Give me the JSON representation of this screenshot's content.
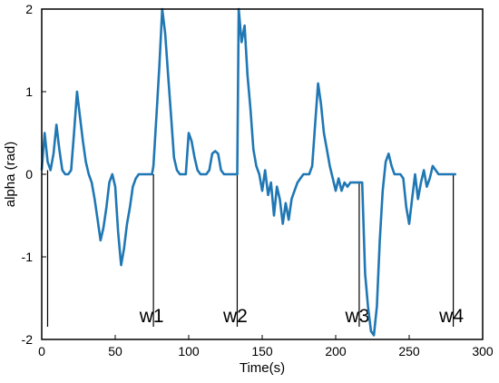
{
  "chart_data": {
    "type": "line",
    "xlabel": "Time(s)",
    "ylabel": "alpha (rad)",
    "xlim": [
      0,
      300
    ],
    "ylim": [
      -2,
      2
    ],
    "xticks": [
      0,
      50,
      100,
      150,
      200,
      250,
      300
    ],
    "yticks": [
      -2,
      -1,
      0,
      1,
      2
    ],
    "grid": false,
    "line_color": "#1f77b4",
    "series": [
      {
        "x": [
          0,
          2,
          4,
          6,
          8,
          10,
          12,
          14,
          16,
          18,
          20,
          22,
          24,
          26,
          28,
          30,
          32,
          34,
          36,
          38,
          40,
          42,
          44,
          46,
          48,
          50,
          52,
          54,
          56,
          58,
          60,
          62,
          64,
          66,
          68,
          70,
          72,
          74,
          75,
          76,
          78,
          80,
          82,
          84,
          86,
          88,
          90,
          92,
          94,
          96,
          98,
          100,
          102,
          104,
          106,
          108,
          110,
          112,
          114,
          116,
          118,
          120,
          122,
          124,
          126,
          128,
          130,
          132,
          133,
          134,
          136,
          138,
          140,
          142,
          144,
          146,
          148,
          150,
          152,
          154,
          156,
          158,
          160,
          162,
          164,
          166,
          168,
          170,
          172,
          174,
          176,
          178,
          180,
          182,
          184,
          186,
          188,
          190,
          192,
          194,
          196,
          198,
          200,
          202,
          204,
          206,
          208,
          210,
          212,
          214,
          216,
          218,
          220,
          222,
          224,
          226,
          228,
          230,
          232,
          234,
          236,
          238,
          240,
          242,
          244,
          246,
          248,
          250,
          252,
          254,
          256,
          258,
          260,
          262,
          264,
          266,
          268,
          270,
          272,
          274,
          276,
          278,
          280,
          282
        ],
        "y": [
          0.05,
          0.5,
          0.15,
          0.05,
          0.25,
          0.6,
          0.3,
          0.05,
          0.0,
          0.0,
          0.05,
          0.5,
          1.0,
          0.7,
          0.4,
          0.15,
          0.0,
          -0.1,
          -0.3,
          -0.55,
          -0.8,
          -0.65,
          -0.4,
          -0.1,
          0.0,
          -0.15,
          -0.7,
          -1.1,
          -0.9,
          -0.6,
          -0.4,
          -0.15,
          -0.05,
          0.0,
          0.0,
          0.0,
          0.0,
          0.0,
          0.0,
          0.1,
          0.7,
          1.3,
          2.0,
          1.7,
          1.2,
          0.7,
          0.2,
          0.05,
          0.0,
          0.0,
          0.0,
          0.5,
          0.4,
          0.2,
          0.05,
          0.0,
          0.0,
          0.0,
          0.05,
          0.25,
          0.28,
          0.25,
          0.05,
          0.0,
          0.0,
          0.0,
          0.0,
          0.0,
          0.0,
          2.0,
          1.6,
          1.8,
          1.2,
          0.8,
          0.3,
          0.1,
          0.0,
          -0.2,
          0.05,
          -0.25,
          -0.1,
          -0.5,
          -0.15,
          -0.3,
          -0.6,
          -0.35,
          -0.55,
          -0.3,
          -0.2,
          -0.1,
          -0.05,
          0.0,
          0.0,
          0.0,
          0.1,
          0.6,
          1.1,
          0.85,
          0.5,
          0.3,
          0.1,
          -0.05,
          -0.2,
          -0.05,
          -0.2,
          -0.1,
          -0.15,
          -0.1,
          -0.1,
          -0.1,
          -0.1,
          -0.1,
          -1.2,
          -1.6,
          -1.9,
          -1.95,
          -1.6,
          -0.8,
          -0.2,
          0.15,
          0.25,
          0.1,
          0.0,
          0.0,
          0.0,
          -0.05,
          -0.4,
          -0.6,
          -0.3,
          0.0,
          -0.3,
          -0.1,
          0.05,
          -0.15,
          -0.05,
          0.1,
          0.05,
          0.0,
          0.0,
          0.0,
          0.0,
          0.0,
          0.0,
          0.0
        ]
      }
    ],
    "annotations": [
      {
        "label": "",
        "x": 4,
        "y_top": 0.05
      },
      {
        "label": "w1",
        "x": 76,
        "y_top": 0.0
      },
      {
        "label": "w2",
        "x": 133,
        "y_top": 0.0
      },
      {
        "label": "w3",
        "x": 216,
        "y_top": -0.1
      },
      {
        "label": "w4",
        "x": 280,
        "y_top": 0.0
      }
    ]
  }
}
